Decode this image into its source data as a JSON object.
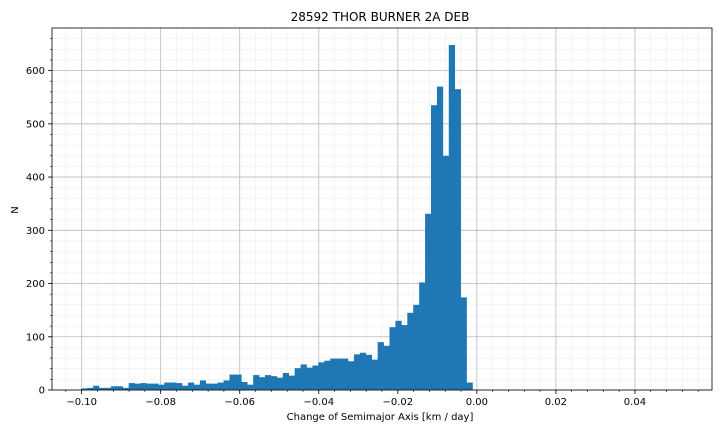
{
  "chart_data": {
    "type": "bar",
    "title": "28592 THOR BURNER 2A DEB",
    "xlabel": "Change of Semimajor Axis [km / day]",
    "ylabel": "N",
    "xlim": [
      -0.1075,
      0.0595
    ],
    "ylim": [
      0,
      680
    ],
    "xticks": [
      -0.1,
      -0.08,
      -0.06,
      -0.04,
      -0.02,
      0.0,
      0.02,
      0.04
    ],
    "xtick_labels": [
      "−0.10",
      "−0.08",
      "−0.06",
      "−0.04",
      "−0.02",
      "0.00",
      "0.02",
      "0.04"
    ],
    "yticks": [
      0,
      100,
      200,
      300,
      400,
      500,
      600
    ],
    "ytick_labels": [
      "0",
      "100",
      "200",
      "300",
      "400",
      "500",
      "600"
    ],
    "grid": true,
    "minor_grid": true,
    "bin_width": 0.0015,
    "bin_start": -0.1001,
    "values": [
      3,
      4,
      8,
      4,
      4,
      7,
      7,
      4,
      13,
      12,
      13,
      12,
      12,
      10,
      14,
      14,
      13,
      8,
      14,
      10,
      18,
      12,
      12,
      14,
      18,
      29,
      29,
      15,
      10,
      28,
      24,
      28,
      26,
      23,
      32,
      27,
      41,
      48,
      42,
      46,
      52,
      55,
      59,
      59,
      59,
      54,
      67,
      70,
      66,
      57,
      90,
      83,
      118,
      130,
      122,
      145,
      160,
      202,
      331,
      535,
      570,
      440,
      648,
      565,
      174,
      14
    ],
    "bar_color": "#1f77b4"
  }
}
